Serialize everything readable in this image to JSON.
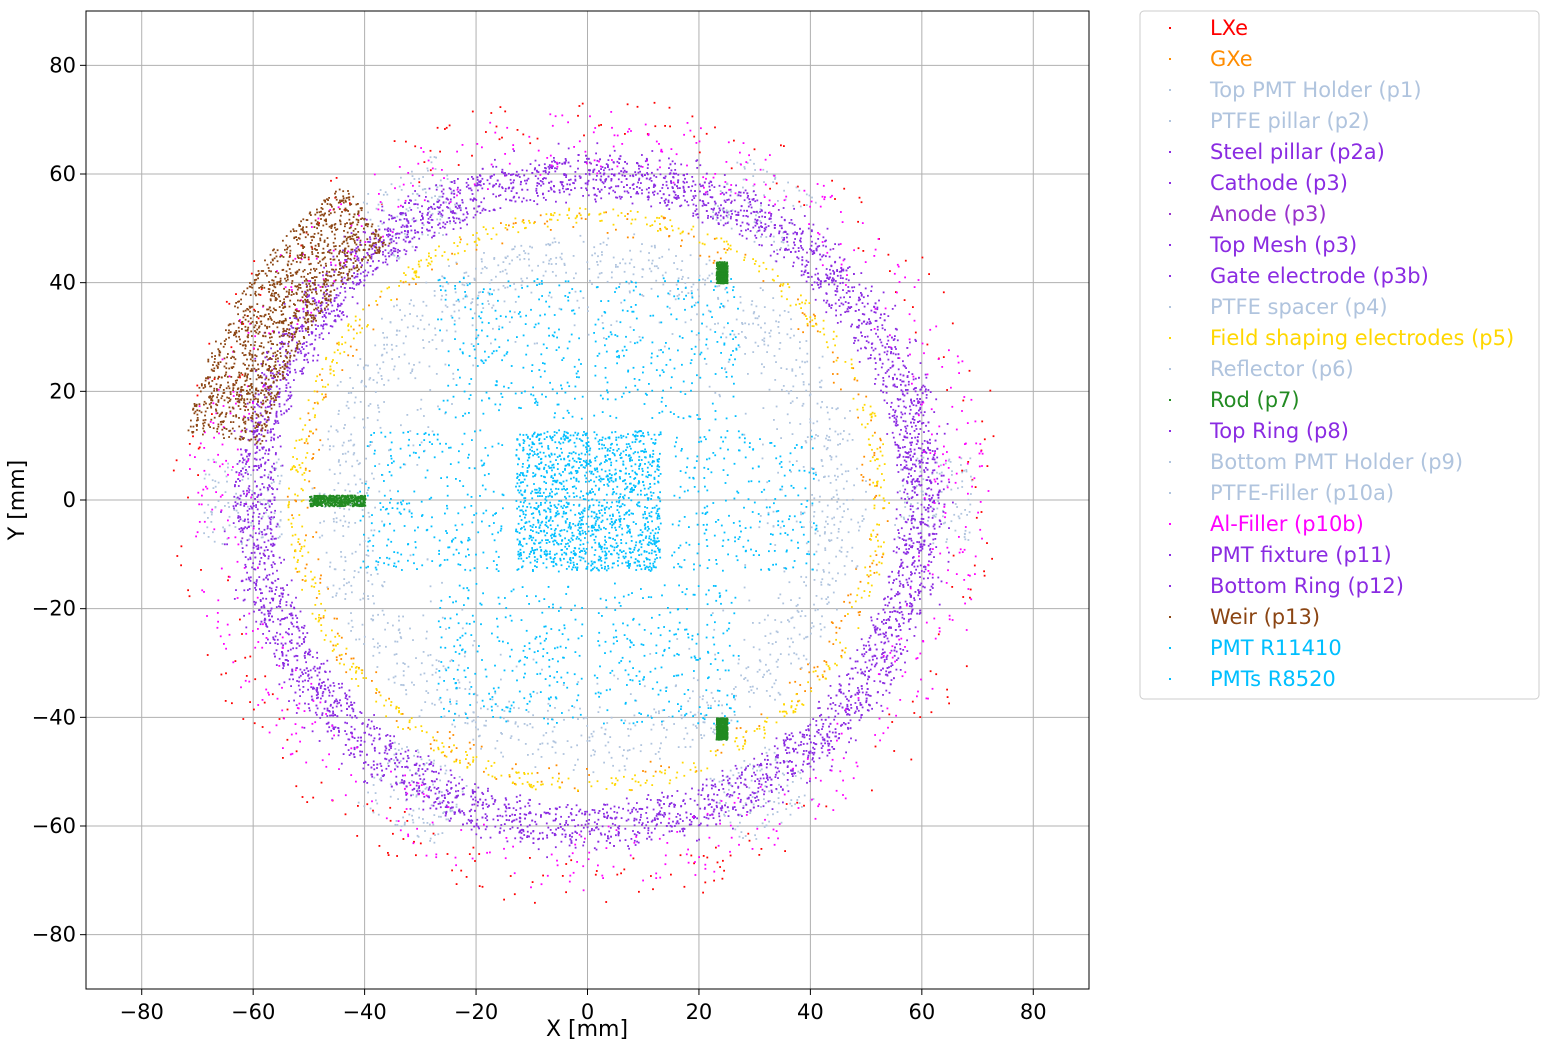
{
  "chart_data": {
    "type": "scatter",
    "xlabel": "X [mm]",
    "ylabel": "Y [mm]",
    "xlim": [
      -90,
      90
    ],
    "ylim": [
      -90,
      90
    ],
    "grid": true,
    "legend_position": "outside-top-right",
    "x_ticks": [
      -80,
      -60,
      -40,
      -20,
      0,
      20,
      40,
      60,
      80
    ],
    "y_ticks": [
      -80,
      -60,
      -40,
      -20,
      0,
      20,
      40,
      60,
      80
    ],
    "series": [
      {
        "name": "LXe",
        "color": "#ff0000",
        "region": {
          "shape": "annulus",
          "r_min": 66,
          "r_max": 75
        },
        "density": "sparse"
      },
      {
        "name": "GXe",
        "color": "#ff8c00",
        "region": {
          "shape": "annulus",
          "r_min": 49,
          "r_max": 54
        },
        "density": "sparse"
      },
      {
        "name": "Top PMT Holder (p1)",
        "color": "#b0c4de",
        "region": {
          "shape": "annulus",
          "r_min": 40,
          "r_max": 48
        },
        "density": "sparse"
      },
      {
        "name": "PTFE pillar (p2)",
        "color": "#b0c4de",
        "region": {
          "shape": "pillars",
          "count": 6,
          "angles_deg": [
            0,
            60,
            120,
            180,
            240,
            300
          ],
          "radius": 62
        },
        "density": "medium"
      },
      {
        "name": "Steel pillar (p2a)",
        "color": "#8a2be2",
        "region": {
          "shape": "annulus",
          "r_min": 56,
          "r_max": 66
        },
        "density": "medium"
      },
      {
        "name": "Cathode (p3)",
        "color": "#8a2be2",
        "region": {
          "shape": "annulus",
          "r_min": 55,
          "r_max": 62
        },
        "density": "medium"
      },
      {
        "name": "Anode (p3)",
        "color": "#9932cc",
        "region": {
          "shape": "annulus",
          "r_min": 57,
          "r_max": 64
        },
        "density": "medium"
      },
      {
        "name": "Top Mesh (p3)",
        "color": "#8a2be2",
        "region": {
          "shape": "annulus",
          "r_min": 56,
          "r_max": 63
        },
        "density": "medium"
      },
      {
        "name": "Gate electrode (p3b)",
        "color": "#8a2be2",
        "region": {
          "shape": "annulus",
          "r_min": 56,
          "r_max": 63
        },
        "density": "medium"
      },
      {
        "name": "PTFE spacer (p4)",
        "color": "#b0c4de",
        "region": {
          "shape": "annulus",
          "r_min": 42,
          "r_max": 49
        },
        "density": "sparse"
      },
      {
        "name": "Field shaping electrodes (p5)",
        "color": "#ffd700",
        "region": {
          "shape": "annulus",
          "r_min": 51,
          "r_max": 54
        },
        "density": "medium"
      },
      {
        "name": "Reflector (p6)",
        "color": "#b0c4de",
        "region": {
          "shape": "annulus",
          "r_min": 44,
          "r_max": 50
        },
        "density": "sparse"
      },
      {
        "name": "Rod (p7)",
        "color": "#228b22",
        "region": {
          "shape": "rods",
          "centers": [
            [
              -45,
              0
            ],
            [
              24,
              42
            ],
            [
              24,
              -42
            ]
          ]
        },
        "density": "dense"
      },
      {
        "name": "Top Ring (p8)",
        "color": "#8a2be2",
        "region": {
          "shape": "annulus",
          "r_min": 57,
          "r_max": 64
        },
        "density": "medium"
      },
      {
        "name": "Bottom PMT Holder (p9)",
        "color": "#b0c4de",
        "region": {
          "shape": "annulus",
          "r_min": 38,
          "r_max": 46
        },
        "density": "sparse"
      },
      {
        "name": "PTFE-Filler (p10a)",
        "color": "#b0c4de",
        "region": {
          "shape": "annulus",
          "r_min": 30,
          "r_max": 44
        },
        "density": "sparse"
      },
      {
        "name": "Al-Filler (p10b)",
        "color": "#ff00ff",
        "region": {
          "shape": "annulus",
          "r_min": 60,
          "r_max": 72
        },
        "density": "medium"
      },
      {
        "name": "PMT fixture (p11)",
        "color": "#8a2be2",
        "region": {
          "shape": "annulus",
          "r_min": 56,
          "r_max": 63
        },
        "density": "medium"
      },
      {
        "name": "Bottom Ring (p12)",
        "color": "#8a2be2",
        "region": {
          "shape": "annulus",
          "r_min": 57,
          "r_max": 64
        },
        "density": "medium"
      },
      {
        "name": "Weir (p13)",
        "color": "#8b4513",
        "region": {
          "shape": "arc_sector",
          "r_min": 59,
          "r_max": 73,
          "theta_min_deg": 127,
          "theta_max_deg": 170
        },
        "density": "dense"
      },
      {
        "name": "PMT R11410",
        "color": "#00bfff",
        "region": {
          "shape": "square",
          "center": [
            0,
            0
          ],
          "half": 13
        },
        "density": "dense"
      },
      {
        "name": "PMTs R8520",
        "color": "#00bfff",
        "region": {
          "shape": "squares",
          "centers": [
            [
              -14,
              28
            ],
            [
              14,
              28
            ],
            [
              -28,
              0
            ],
            [
              28,
              0
            ],
            [
              -14,
              -28
            ],
            [
              14,
              -28
            ]
          ],
          "half": 13
        },
        "density": "dense"
      }
    ]
  }
}
